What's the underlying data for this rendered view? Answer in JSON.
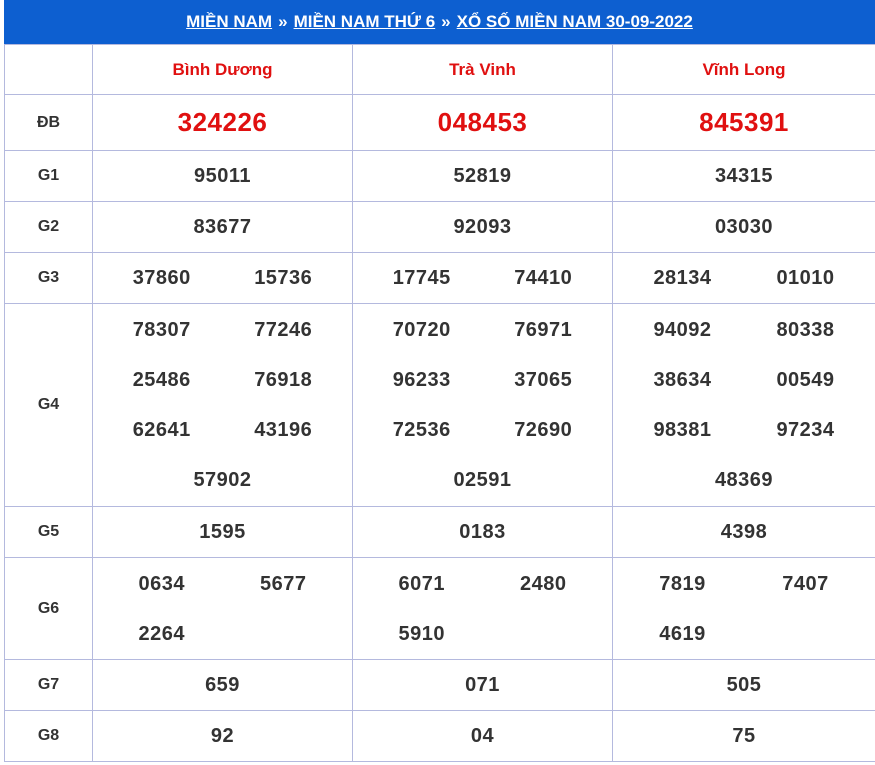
{
  "header": {
    "crumb1": "MIỀN NAM",
    "sep": "»",
    "crumb2": "MIỀN NAM THỨ 6",
    "crumb3": "XỔ SỐ MIỀN NAM 30-09-2022"
  },
  "provinces": [
    "Bình Dương",
    "Trà Vinh",
    "Vĩnh Long"
  ],
  "prizes": {
    "db": {
      "label": "ĐB",
      "values": [
        "324226",
        "048453",
        "845391"
      ]
    },
    "g1": {
      "label": "G1",
      "values": [
        "95011",
        "52819",
        "34315"
      ]
    },
    "g2": {
      "label": "G2",
      "values": [
        "83677",
        "92093",
        "03030"
      ]
    },
    "g3": {
      "label": "G3",
      "values": [
        [
          "37860",
          "15736"
        ],
        [
          "17745",
          "74410"
        ],
        [
          "28134",
          "01010"
        ]
      ]
    },
    "g4": {
      "label": "G4",
      "values": [
        [
          "78307",
          "77246",
          "25486",
          "76918",
          "62641",
          "43196",
          "57902"
        ],
        [
          "70720",
          "76971",
          "96233",
          "37065",
          "72536",
          "72690",
          "02591"
        ],
        [
          "94092",
          "80338",
          "38634",
          "00549",
          "98381",
          "97234",
          "48369"
        ]
      ]
    },
    "g5": {
      "label": "G5",
      "values": [
        "1595",
        "0183",
        "4398"
      ]
    },
    "g6": {
      "label": "G6",
      "values": [
        [
          "0634",
          "5677",
          "2264"
        ],
        [
          "6071",
          "2480",
          "5910"
        ],
        [
          "7819",
          "7407",
          "4619"
        ]
      ]
    },
    "g7": {
      "label": "G7",
      "values": [
        "659",
        "071",
        "505"
      ]
    },
    "g8": {
      "label": "G8",
      "values": [
        "92",
        "04",
        "75"
      ]
    }
  },
  "colors": {
    "header_bg": "#0d5fd0",
    "accent_red": "#e01010",
    "border": "#b4b9de"
  }
}
